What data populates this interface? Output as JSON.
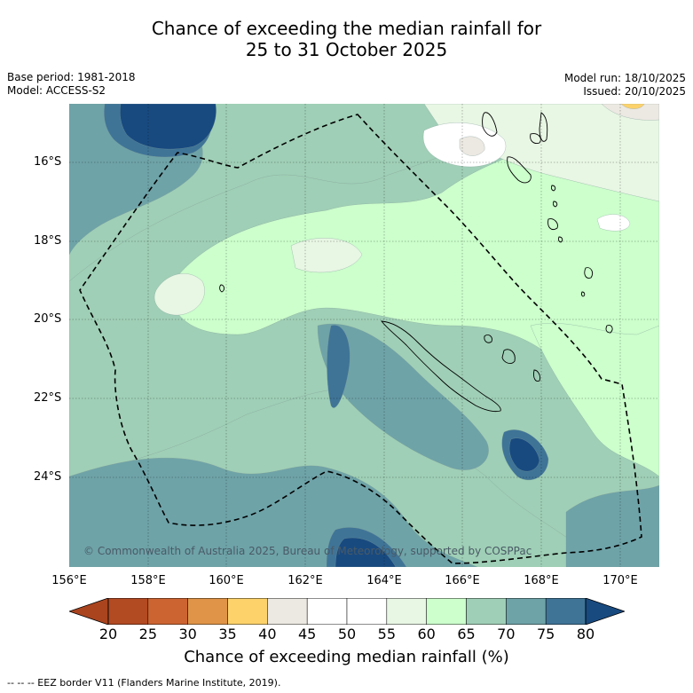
{
  "title": {
    "line1": "Chance of exceeding the median rainfall for",
    "line2": "25 to 31 October 2025"
  },
  "meta": {
    "base_period": "Base period: 1981-2018",
    "model": "Model: ACCESS-S2",
    "model_run": "Model run: 18/10/2025",
    "issued": "Issued: 20/10/2025"
  },
  "axes": {
    "lat_labels": [
      "16°S",
      "18°S",
      "20°S",
      "22°S",
      "24°S"
    ],
    "lon_labels": [
      "156°E",
      "158°E",
      "160°E",
      "162°E",
      "164°E",
      "166°E",
      "168°E",
      "170°E"
    ]
  },
  "colorbar": {
    "ticks": [
      "20",
      "25",
      "30",
      "35",
      "40",
      "45",
      "50",
      "55",
      "60",
      "65",
      "70",
      "75",
      "80"
    ],
    "colors": [
      "#a9441f",
      "#b24a22",
      "#cc6431",
      "#e09447",
      "#fdd26b",
      "#ece8e2",
      "#ffffff",
      "#ffffff",
      "#e8f6e4",
      "#ccffcc",
      "#9fcfb6",
      "#6ea3a8",
      "#3f7497",
      "#184a80"
    ],
    "label": "Chance of exceeding median rainfall (%)"
  },
  "map": {
    "copyright": "© Commonwealth of Australia 2025, Bureau of Meteorology, supported by COSPPac",
    "colors": {
      "c45": "#ece8e2",
      "c50": "#ffffff",
      "c55": "#ffffff",
      "c60": "#e8f6e4",
      "c65": "#ccffcc",
      "c70": "#9fcfb6",
      "c75": "#6ea3a8",
      "c80": "#3f7497",
      "c85": "#184a80",
      "c35": "#fdd26b"
    }
  },
  "footer": {
    "eez_note": "--  --  -- EEZ border V11 (Flanders Marine Institute, 2019)."
  }
}
